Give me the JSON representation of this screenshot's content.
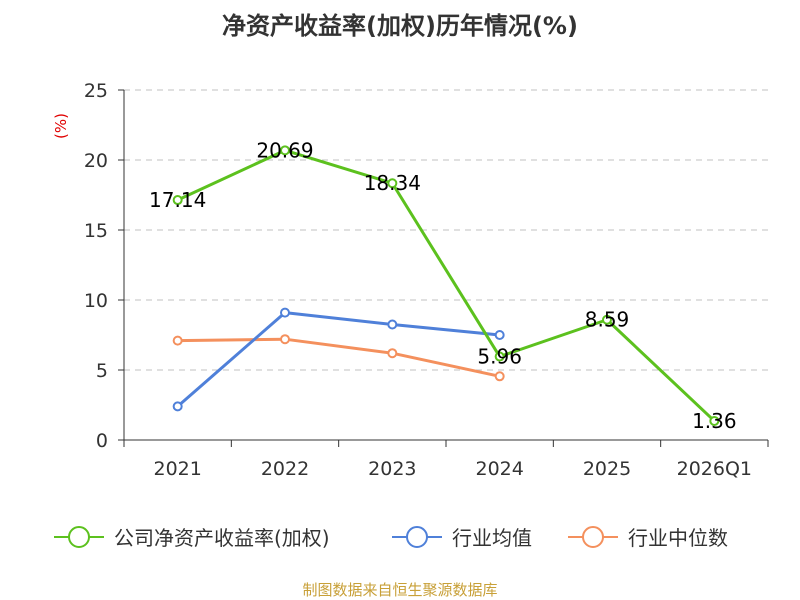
{
  "chart_data": {
    "type": "line",
    "title": "净资产收益率(加权)历年情况(%)",
    "ylabel": "(%)",
    "xlabel": "",
    "ylim": [
      0,
      25
    ],
    "yticks": [
      0,
      5,
      10,
      15,
      20,
      25
    ],
    "grid": true,
    "legend_position": "bottom",
    "categories": [
      "2021",
      "2022",
      "2023",
      "2024",
      "2025",
      "2026Q1"
    ],
    "series": [
      {
        "name": "公司净资产收益率(加权)",
        "color": "#5cc11e",
        "values": [
          17.14,
          20.69,
          18.34,
          5.96,
          8.59,
          1.36
        ],
        "labels": [
          "17.14",
          "20.69",
          "18.34",
          "5.96",
          "8.59",
          "1.36"
        ]
      },
      {
        "name": "行业均值",
        "color": "#4f80d9",
        "values": [
          2.4,
          9.1,
          8.25,
          7.5,
          null,
          null
        ]
      },
      {
        "name": "行业中位数",
        "color": "#f4905d",
        "values": [
          7.1,
          7.2,
          6.2,
          4.55,
          null,
          null
        ]
      }
    ],
    "source": "制图数据来自恒生聚源数据库"
  }
}
